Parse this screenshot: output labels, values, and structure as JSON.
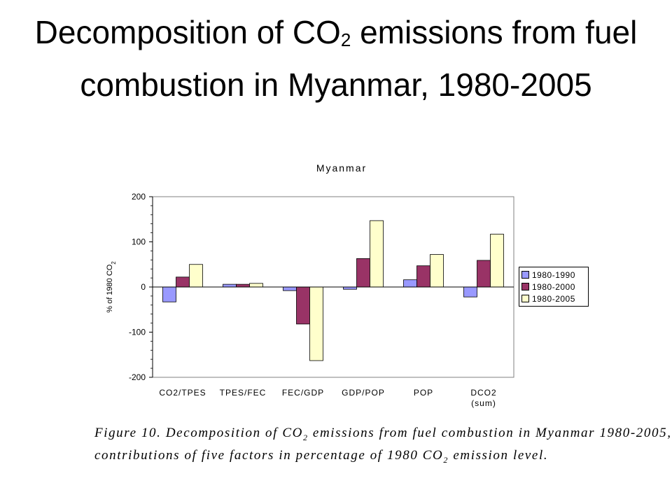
{
  "slide": {
    "title_part1": "Decomposition of CO",
    "title_sub": "2",
    "title_part2": " emissions from fuel combustion in Myanmar, 1980-2005"
  },
  "caption": {
    "line1_a": "Figure 10. Decomposition of CO",
    "line1_sub": "2",
    "line1_b": " emissions from fuel combustion in Myanmar 1980-2005,",
    "line2_a": "contributions of five factors in percentage of 1980 CO",
    "line2_sub": "2",
    "line2_b": " emission level."
  },
  "chart_data": {
    "type": "bar",
    "title": "Myanmar",
    "ylabel": "% of 1980 CO",
    "ylabel_sub": "2",
    "ylim": [
      -200,
      200
    ],
    "yticks": [
      200,
      100,
      0,
      -100,
      -200
    ],
    "yticklabels": [
      "200",
      "100",
      "0",
      "-100",
      "-200"
    ],
    "categories": [
      "CO2/TPES",
      "TPES/FEC",
      "FEC/GDP",
      "GDP/POP",
      "POP",
      "DCO2"
    ],
    "category_sublabels": [
      "",
      "",
      "",
      "",
      "",
      "(sum)"
    ],
    "legend_position": "right",
    "grid": false,
    "series": [
      {
        "name": "1980-1990",
        "color": "#9999ff",
        "values": [
          -33,
          6,
          -8,
          -5,
          16,
          -22
        ]
      },
      {
        "name": "1980-2000",
        "color": "#993366",
        "values": [
          22,
          6,
          -82,
          63,
          47,
          59
        ]
      },
      {
        "name": "1980-2005",
        "color": "#ffffcc",
        "values": [
          50,
          8,
          -163,
          147,
          72,
          117
        ]
      }
    ]
  }
}
